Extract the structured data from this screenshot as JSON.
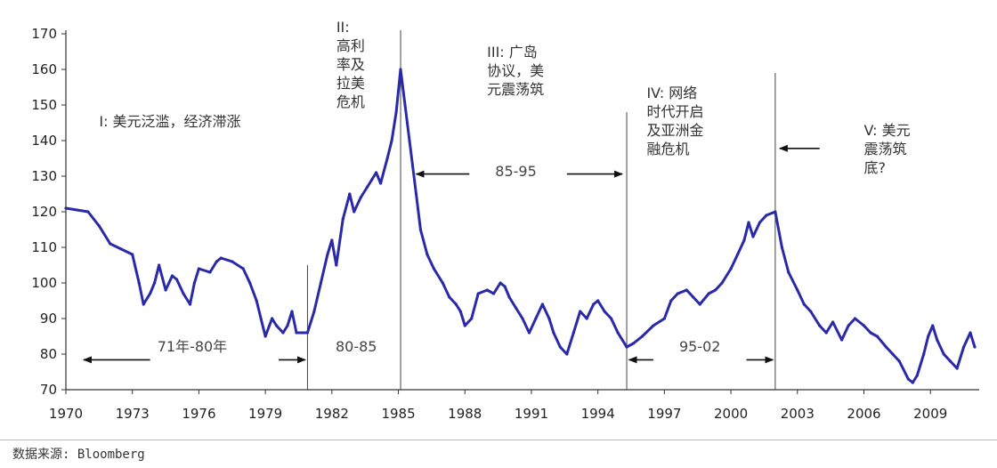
{
  "source_text": "数据来源: Bloomberg",
  "chart_data": {
    "type": "line",
    "title": "",
    "xlabel": "",
    "ylabel": "",
    "xlim": [
      1970,
      2011.2
    ],
    "ylim": [
      70,
      170
    ],
    "y_ticks": [
      70,
      80,
      90,
      100,
      110,
      120,
      130,
      140,
      150,
      160,
      170
    ],
    "x_ticks": [
      1970,
      1973,
      1976,
      1979,
      1982,
      1985,
      1988,
      1991,
      1994,
      1997,
      2000,
      2003,
      2006,
      2009
    ],
    "line_color": "#2a2aa8",
    "grid": false,
    "dividers": [
      1980.9,
      1985.1,
      1995.3,
      2002.0
    ],
    "series": [
      {
        "name": "",
        "points": [
          [
            1970.0,
            121
          ],
          [
            1970.5,
            120.5
          ],
          [
            1971.0,
            120
          ],
          [
            1971.5,
            116
          ],
          [
            1972.0,
            111
          ],
          [
            1972.5,
            109.5
          ],
          [
            1973.0,
            108
          ],
          [
            1973.3,
            100
          ],
          [
            1973.5,
            94
          ],
          [
            1973.8,
            97
          ],
          [
            1974.0,
            100
          ],
          [
            1974.2,
            105
          ],
          [
            1974.5,
            98
          ],
          [
            1974.8,
            102
          ],
          [
            1975.0,
            101
          ],
          [
            1975.3,
            97
          ],
          [
            1975.6,
            94
          ],
          [
            1975.8,
            100
          ],
          [
            1976.0,
            104
          ],
          [
            1976.5,
            103
          ],
          [
            1976.8,
            106
          ],
          [
            1977.0,
            107
          ],
          [
            1977.5,
            106
          ],
          [
            1978.0,
            104
          ],
          [
            1978.3,
            100
          ],
          [
            1978.6,
            95
          ],
          [
            1978.8,
            90
          ],
          [
            1979.0,
            85
          ],
          [
            1979.3,
            90
          ],
          [
            1979.5,
            88
          ],
          [
            1979.8,
            86
          ],
          [
            1980.0,
            88
          ],
          [
            1980.2,
            92
          ],
          [
            1980.4,
            86
          ],
          [
            1980.7,
            86
          ],
          [
            1980.9,
            86
          ],
          [
            1981.2,
            92
          ],
          [
            1981.5,
            100
          ],
          [
            1981.8,
            108
          ],
          [
            1982.0,
            112
          ],
          [
            1982.2,
            105
          ],
          [
            1982.5,
            118
          ],
          [
            1982.8,
            125
          ],
          [
            1983.0,
            120
          ],
          [
            1983.3,
            124
          ],
          [
            1983.6,
            127
          ],
          [
            1983.8,
            129
          ],
          [
            1984.0,
            131
          ],
          [
            1984.2,
            128
          ],
          [
            1984.5,
            135
          ],
          [
            1984.7,
            140
          ],
          [
            1984.9,
            148
          ],
          [
            1985.1,
            160
          ],
          [
            1985.3,
            150
          ],
          [
            1985.5,
            140
          ],
          [
            1985.8,
            125
          ],
          [
            1986.0,
            115
          ],
          [
            1986.3,
            108
          ],
          [
            1986.6,
            104
          ],
          [
            1987.0,
            100
          ],
          [
            1987.3,
            96
          ],
          [
            1987.6,
            94
          ],
          [
            1987.8,
            92
          ],
          [
            1988.0,
            88
          ],
          [
            1988.3,
            90
          ],
          [
            1988.6,
            97
          ],
          [
            1989.0,
            98
          ],
          [
            1989.3,
            97
          ],
          [
            1989.6,
            100
          ],
          [
            1989.8,
            99
          ],
          [
            1990.0,
            96
          ],
          [
            1990.3,
            93
          ],
          [
            1990.6,
            90
          ],
          [
            1990.9,
            86
          ],
          [
            1991.2,
            90
          ],
          [
            1991.5,
            94
          ],
          [
            1991.8,
            90
          ],
          [
            1992.0,
            86
          ],
          [
            1992.3,
            82
          ],
          [
            1992.6,
            80
          ],
          [
            1992.9,
            86
          ],
          [
            1993.2,
            92
          ],
          [
            1993.5,
            90
          ],
          [
            1993.8,
            94
          ],
          [
            1994.0,
            95
          ],
          [
            1994.3,
            92
          ],
          [
            1994.6,
            90
          ],
          [
            1994.9,
            86
          ],
          [
            1995.3,
            82
          ],
          [
            1995.6,
            83
          ],
          [
            1996.0,
            85
          ],
          [
            1996.5,
            88
          ],
          [
            1997.0,
            90
          ],
          [
            1997.3,
            95
          ],
          [
            1997.6,
            97
          ],
          [
            1998.0,
            98
          ],
          [
            1998.3,
            96
          ],
          [
            1998.6,
            94
          ],
          [
            1999.0,
            97
          ],
          [
            1999.3,
            98
          ],
          [
            1999.6,
            100
          ],
          [
            2000.0,
            104
          ],
          [
            2000.3,
            108
          ],
          [
            2000.6,
            112
          ],
          [
            2000.8,
            117
          ],
          [
            2001.0,
            113
          ],
          [
            2001.3,
            117
          ],
          [
            2001.6,
            119
          ],
          [
            2002.0,
            120
          ],
          [
            2002.3,
            110
          ],
          [
            2002.6,
            103
          ],
          [
            2003.0,
            98
          ],
          [
            2003.3,
            94
          ],
          [
            2003.6,
            92
          ],
          [
            2004.0,
            88
          ],
          [
            2004.3,
            86
          ],
          [
            2004.6,
            89
          ],
          [
            2005.0,
            84
          ],
          [
            2005.3,
            88
          ],
          [
            2005.6,
            90
          ],
          [
            2006.0,
            88
          ],
          [
            2006.3,
            86
          ],
          [
            2006.6,
            85
          ],
          [
            2007.0,
            82
          ],
          [
            2007.3,
            80
          ],
          [
            2007.6,
            78
          ],
          [
            2008.0,
            73
          ],
          [
            2008.2,
            72
          ],
          [
            2008.4,
            74
          ],
          [
            2008.7,
            80
          ],
          [
            2008.9,
            85
          ],
          [
            2009.1,
            88
          ],
          [
            2009.3,
            84
          ],
          [
            2009.6,
            80
          ],
          [
            2009.9,
            78
          ],
          [
            2010.2,
            76
          ],
          [
            2010.5,
            82
          ],
          [
            2010.8,
            86
          ],
          [
            2011.0,
            82
          ]
        ]
      }
    ],
    "phase_labels": [
      {
        "id": "phase1",
        "lines": [
          "I: 美元泛滥，经济滞涨"
        ],
        "x": 1971.5,
        "y": 144
      },
      {
        "id": "phase2",
        "lines": [
          "II:",
          "高利",
          "率及",
          "拉美",
          "危机"
        ],
        "x": 1982.2,
        "y": 170.5
      },
      {
        "id": "phase3",
        "lines": [
          "III: 广岛",
          "协议，美",
          "元震荡筑"
        ],
        "x": 1989.0,
        "y": 163.5
      },
      {
        "id": "phase4",
        "lines": [
          "IV: 网络",
          "时代开启",
          "及亚洲金",
          "融危机"
        ],
        "x": 1996.2,
        "y": 152
      },
      {
        "id": "phase5",
        "lines": [
          "V: 美元",
          "震荡筑",
          "底?"
        ],
        "x": 2006.0,
        "y": 141.5
      }
    ],
    "range_labels": [
      {
        "id": "range-71-80",
        "text": "71年-80年",
        "x": 1975.7,
        "y": 82
      },
      {
        "id": "range-80-85",
        "text": "80-85",
        "x": 1983.1,
        "y": 82
      },
      {
        "id": "range-85-95",
        "text": "85-95",
        "x": 1990.3,
        "y": 131.3
      },
      {
        "id": "range-95-02",
        "text": "95-02",
        "x": 1998.6,
        "y": 82
      }
    ],
    "arrows": [
      {
        "id": "arrow-71-80-left",
        "from": [
          1973.8,
          78.4
        ],
        "to": [
          1970.8,
          78.4
        ]
      },
      {
        "id": "arrow-71-80-right",
        "from": [
          1979.6,
          78.4
        ],
        "to": [
          1980.8,
          78.4
        ]
      },
      {
        "id": "arrow-85-95-left",
        "from": [
          1988.2,
          130.6
        ],
        "to": [
          1985.8,
          130.6
        ]
      },
      {
        "id": "arrow-85-95-right",
        "from": [
          1992.6,
          130.6
        ],
        "to": [
          1995.1,
          130.6
        ]
      },
      {
        "id": "arrow-95-02-left",
        "from": [
          1996.5,
          78.4
        ],
        "to": [
          1995.4,
          78.4
        ]
      },
      {
        "id": "arrow-95-02-right",
        "from": [
          2000.7,
          78.4
        ],
        "to": [
          2001.9,
          78.4
        ]
      },
      {
        "id": "arrow-phase5",
        "from": [
          2004.0,
          137.8
        ],
        "to": [
          2002.2,
          137.8
        ]
      }
    ]
  }
}
